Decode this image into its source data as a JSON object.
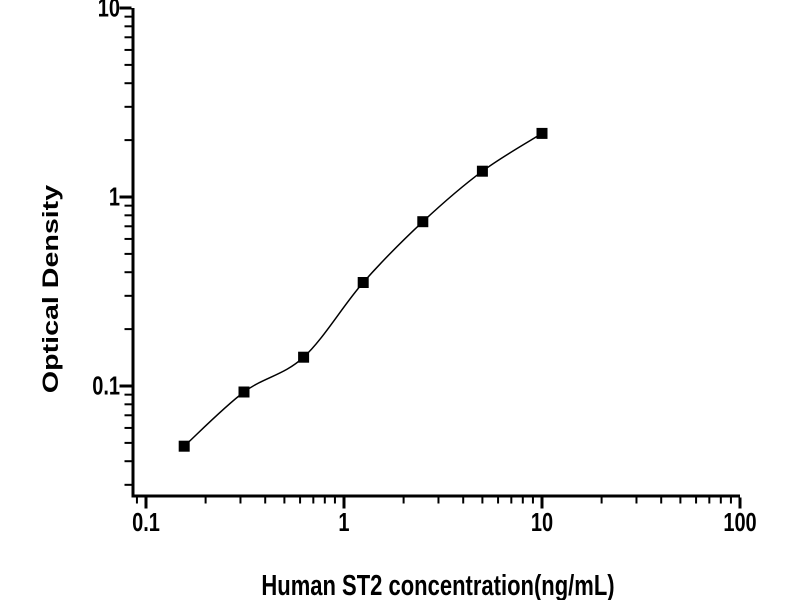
{
  "window": {
    "background": "#ffffff"
  },
  "chart_data": {
    "type": "scatter",
    "subtype": "ELISA standard curve: square markers with smooth fitted line, log-log axes",
    "title": "",
    "xlabel": "Human ST2 concentration(ng/mL)",
    "ylabel": "Optical Density",
    "x_scale": "log10",
    "y_scale": "log10",
    "xlim": [
      0.087,
      100
    ],
    "ylim": [
      0.026,
      10
    ],
    "x": [
      0.156,
      0.3125,
      0.625,
      1.25,
      2.5,
      5,
      10
    ],
    "y": [
      0.048,
      0.093,
      0.142,
      0.353,
      0.74,
      1.37,
      2.17
    ],
    "x_major_ticks": [
      0.1,
      1,
      10,
      100
    ],
    "x_tick_labels": [
      "0.1",
      "1",
      "10",
      "100"
    ],
    "y_major_ticks": [
      0.1,
      1,
      10
    ],
    "y_tick_labels": [
      "0.1",
      "1",
      "10"
    ],
    "marker": "filled-square-black",
    "marker_size_px": 11,
    "line": "smooth-fit-through-points",
    "grid": false,
    "legend": null,
    "tick_direction": "out",
    "colors": {
      "foreground": "#000000",
      "background": "#ffffff",
      "points": "#000000",
      "curve": "#000000",
      "axes": "#000000"
    }
  }
}
